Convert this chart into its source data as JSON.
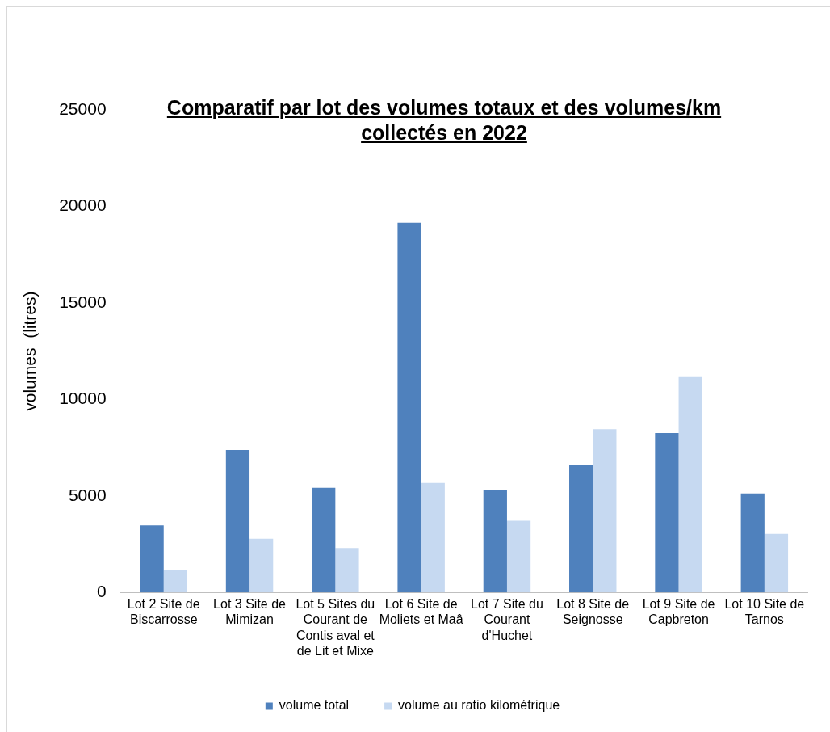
{
  "chart_data": {
    "type": "bar",
    "title": "Comparatif par lot des volumes totaux et des volumes/km  collectés  en 2022",
    "ylabel": "volumes  (litres)",
    "categories": [
      "Lot 2 Site de Biscarrosse",
      "Lot 3 Site de Mimizan",
      "Lot 5 Sites du Courant de Contis aval et de Lit et Mixe",
      "Lot 6 Site de Moliets et Maâ",
      "Lot 7 Site du Courant d'Huchet",
      "Lot 8 Site de Seignosse",
      "Lot 9 Site de Capbreton",
      "Lot 10 Site de Tarnos"
    ],
    "series": [
      {
        "name": "volume total",
        "color": "#4f81bd",
        "values": [
          3470,
          7380,
          5420,
          19150,
          5280,
          6600,
          8260,
          5130
        ]
      },
      {
        "name": "volume au ratio kilométrique",
        "color": "#c6d9f1",
        "values": [
          1170,
          2780,
          2300,
          5670,
          3710,
          8450,
          11200,
          3030
        ]
      }
    ],
    "ylim": [
      0,
      25000
    ],
    "yticks": [
      0,
      5000,
      10000,
      15000,
      20000,
      25000
    ],
    "grid": false,
    "legend": "bottom"
  }
}
